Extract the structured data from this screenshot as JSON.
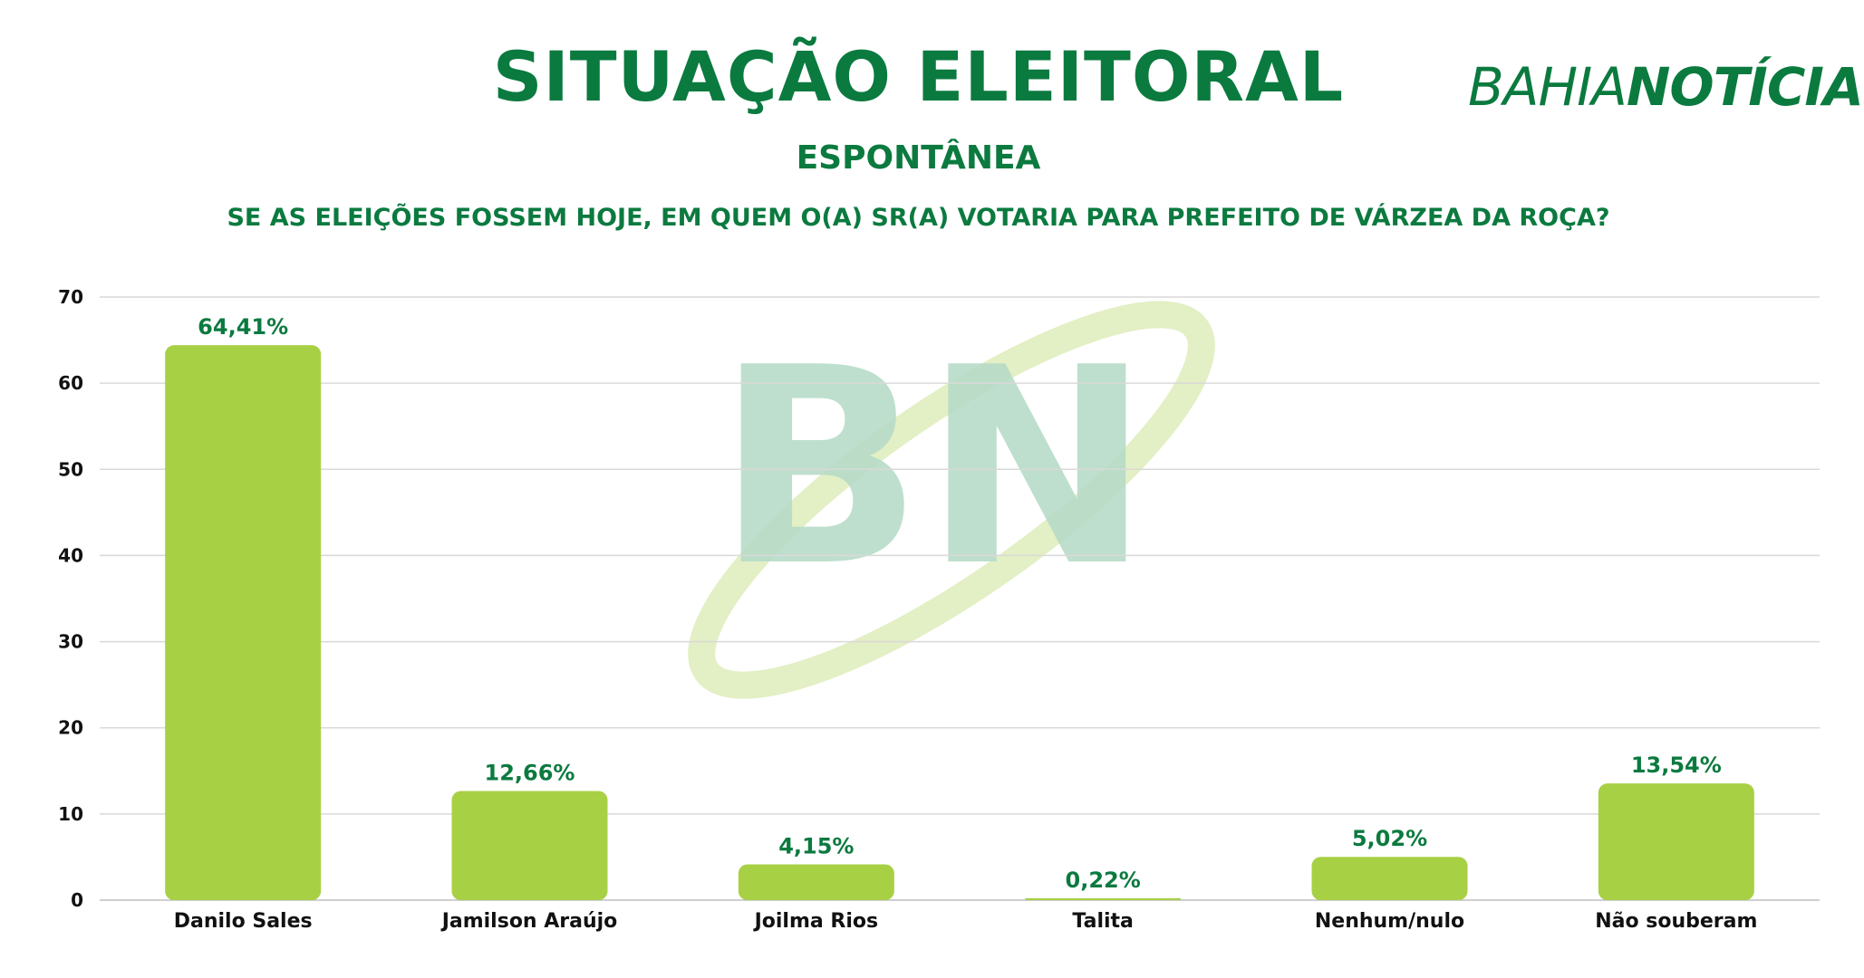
{
  "header": {
    "title": "SITUAÇÃO ELEITORAL",
    "subtitle": "ESPONTÂNEA",
    "question": "SE AS ELEIÇÕES FOSSEM HOJE, EM QUEM O(A) SR(A) VOTARIA PARA PREFEITO DE VÁRZEA DA ROÇA?"
  },
  "logo": {
    "part1": "BAHIA",
    "part2": "NOTÍCIAS"
  },
  "watermark": {
    "text": "BN"
  },
  "colors": {
    "accent": "#0b7a3f",
    "bar": "#a8d045",
    "grid": "#d9d9d9",
    "watermark": "#b7dcc8"
  },
  "chart_data": {
    "type": "bar",
    "categories": [
      "Danilo Sales",
      "Jamilson Araújo",
      "Joilma Rios",
      "Talita",
      "Nenhum/nulo",
      "Não souberam"
    ],
    "values": [
      64.41,
      12.66,
      4.15,
      0.22,
      5.02,
      13.54
    ],
    "data_labels": [
      "64,41%",
      "12,66%",
      "4,15%",
      "0,22%",
      "5,02%",
      "13,54%"
    ],
    "ylim": [
      0,
      70
    ],
    "yticks": [
      0,
      10,
      20,
      30,
      40,
      50,
      60,
      70
    ],
    "grid": true,
    "legend": "none"
  }
}
